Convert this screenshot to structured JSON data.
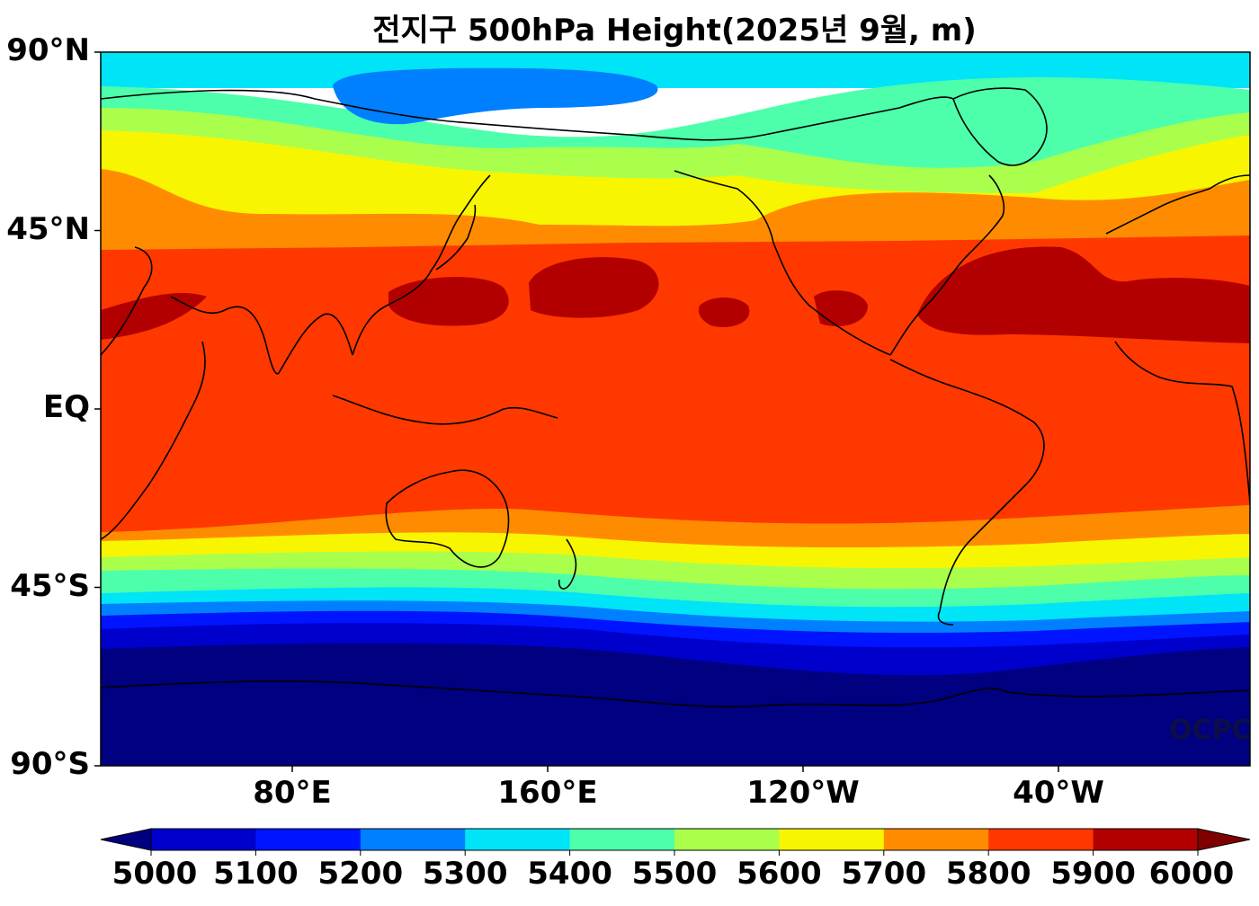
{
  "title": "전지구 500hPa Height(2025년 9월, m)",
  "watermark": "OCPC",
  "lat_ticks": [
    {
      "label": "90°N",
      "lat": 90
    },
    {
      "label": "45°N",
      "lat": 45
    },
    {
      "label": "EQ",
      "lat": 0
    },
    {
      "label": "45°S",
      "lat": -45
    },
    {
      "label": "90°S",
      "lat": -90
    }
  ],
  "lon_ticks": [
    {
      "label": "80°E",
      "lon": 80
    },
    {
      "label": "160°E",
      "lon": 160
    },
    {
      "label": "120°W",
      "lon": 240
    },
    {
      "label": "40°W",
      "lon": 320
    }
  ],
  "colorbar": {
    "levels": [
      "5000",
      "5100",
      "5200",
      "5300",
      "5400",
      "5500",
      "5600",
      "5700",
      "5800",
      "5900",
      "6000"
    ],
    "colors": [
      "#000080",
      "#0000cd",
      "#0014ff",
      "#0080ff",
      "#00e4f8",
      "#4dffaa",
      "#aaff4d",
      "#f8f500",
      "#ff8c00",
      "#ff3800",
      "#b20000",
      "#800000"
    ]
  },
  "chart_data": {
    "type": "filled-contour-map",
    "variable": "500hPa Height",
    "units": "m",
    "period": "2025년 9월",
    "x_range_lon_east": [
      20,
      380
    ],
    "y_range_lat": [
      -90,
      90
    ],
    "levels": [
      5000,
      5100,
      5200,
      5300,
      5400,
      5500,
      5600,
      5700,
      5800,
      5900,
      6000
    ],
    "zonal_profile_approx": [
      {
        "lat": 85,
        "value": 5320
      },
      {
        "lat": 75,
        "value": 5420
      },
      {
        "lat": 65,
        "value": 5580
      },
      {
        "lat": 55,
        "value": 5700
      },
      {
        "lat": 47,
        "value": 5780
      },
      {
        "lat": 35,
        "value": 5880
      },
      {
        "lat": 25,
        "value": 5880
      },
      {
        "lat": 0,
        "value": 5860
      },
      {
        "lat": -30,
        "value": 5830
      },
      {
        "lat": -35,
        "value": 5760
      },
      {
        "lat": -40,
        "value": 5660
      },
      {
        "lat": -45,
        "value": 5560
      },
      {
        "lat": -50,
        "value": 5420
      },
      {
        "lat": -55,
        "value": 5280
      },
      {
        "lat": -60,
        "value": 5150
      },
      {
        "lat": -65,
        "value": 5050
      },
      {
        "lat": -75,
        "value": 4990
      }
    ]
  }
}
